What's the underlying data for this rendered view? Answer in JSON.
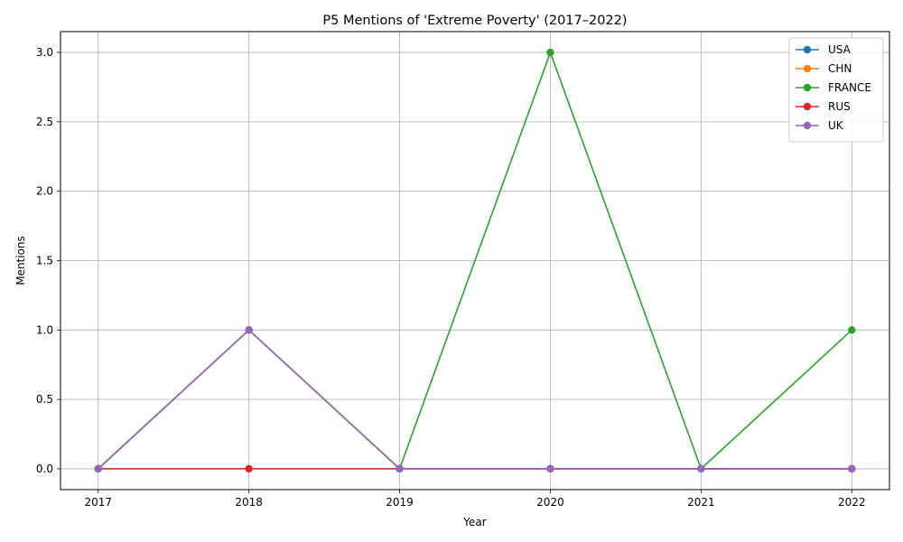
{
  "chart_data": {
    "type": "line",
    "title": "P5 Mentions of 'Extreme Poverty' (2017–2022)",
    "xlabel": "Year",
    "ylabel": "Mentions",
    "x": [
      2017,
      2018,
      2019,
      2020,
      2021,
      2022
    ],
    "x_tick_labels": [
      "2017",
      "2018",
      "2019",
      "2020",
      "2021",
      "2022"
    ],
    "y_ticks": [
      0.0,
      0.5,
      1.0,
      1.5,
      2.0,
      2.5,
      3.0
    ],
    "y_tick_labels": [
      "0.0",
      "0.5",
      "1.0",
      "1.5",
      "2.0",
      "2.5",
      "3.0"
    ],
    "xlim": [
      2016.75,
      2022.25
    ],
    "ylim": [
      -0.15,
      3.15
    ],
    "grid": true,
    "legend_position": "top-right",
    "series": [
      {
        "name": "USA",
        "color": "#1f77b4",
        "values": [
          0,
          1,
          0,
          0,
          0,
          0
        ]
      },
      {
        "name": "CHN",
        "color": "#ff7f0e",
        "values": [
          0,
          1,
          0,
          0,
          0,
          0
        ]
      },
      {
        "name": "FRANCE",
        "color": "#2ca02c",
        "values": [
          0,
          1,
          0,
          3,
          0,
          1
        ]
      },
      {
        "name": "RUS",
        "color": "#d62728",
        "values": [
          0,
          0,
          0,
          0,
          0,
          0
        ]
      },
      {
        "name": "UK",
        "color": "#9467bd",
        "values": [
          0,
          1,
          0,
          0,
          0,
          0
        ]
      }
    ]
  }
}
